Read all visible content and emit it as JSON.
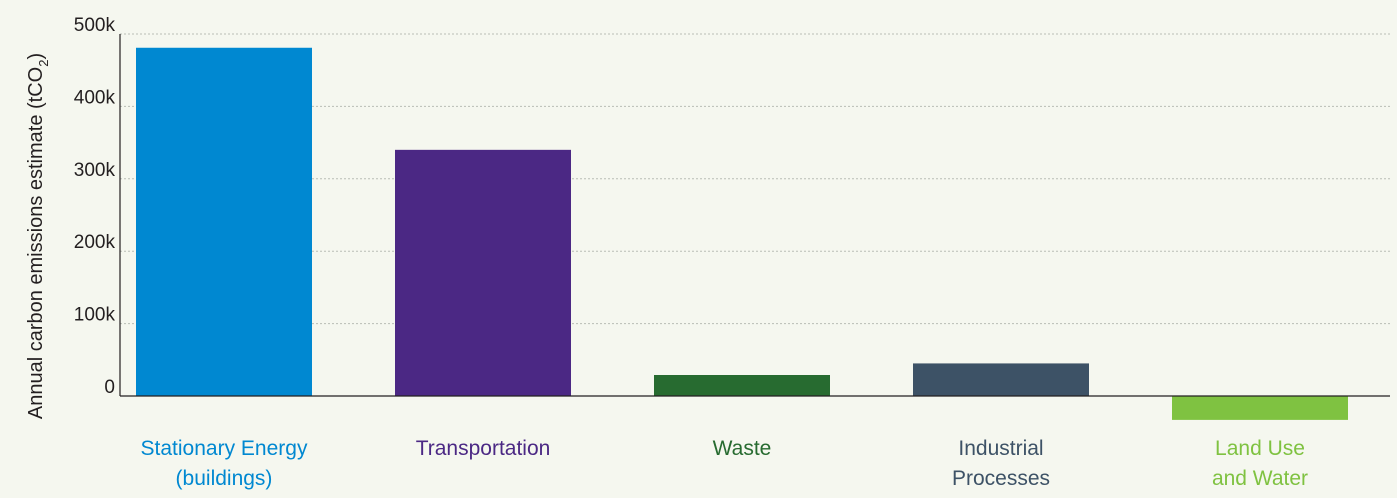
{
  "chart_data": {
    "type": "bar",
    "categories": [
      [
        "Stationary Energy",
        "(buildings)"
      ],
      [
        "Transportation"
      ],
      [
        "Waste"
      ],
      [
        "Industrial",
        "Processes"
      ],
      [
        "Land Use",
        "and Water"
      ]
    ],
    "values": [
      481000,
      340000,
      29000,
      45000,
      -33000
    ],
    "colors": [
      "#0088d1",
      "#4b2884",
      "#276b30",
      "#3d5266",
      "#7fc241"
    ],
    "ylabel": "Annual carbon emissions estimate (tCO",
    "ylabel_subscript": "2",
    "ylabel_close": ")",
    "ylim": [
      -40000,
      500000
    ],
    "yticks": [
      0,
      100000,
      200000,
      300000,
      400000,
      500000
    ],
    "ytick_labels": [
      "0",
      "100k",
      "200k",
      "300k",
      "400k",
      "500k"
    ],
    "grid": true,
    "legend": "none"
  }
}
